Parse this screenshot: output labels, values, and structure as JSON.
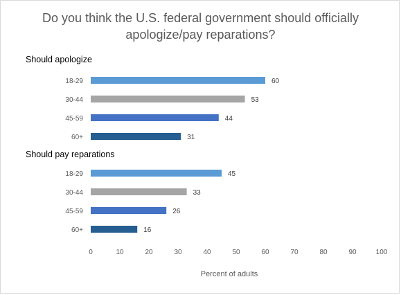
{
  "chart_data": {
    "type": "bar",
    "orientation": "horizontal",
    "title": "Do you think the U.S. federal government should officially apologize/pay reparations?",
    "title_lines": [
      "Do you think the U.S. federal government should officially",
      "apologize/pay reparations?"
    ],
    "xlabel": "Percent of adults",
    "xlim": [
      0,
      100
    ],
    "xticks": [
      "0",
      "10",
      "20",
      "30",
      "40",
      "50",
      "60",
      "70",
      "80",
      "90",
      "100"
    ],
    "grid": false,
    "legend": "none",
    "categories": [
      "18-29",
      "30-44",
      "45-59",
      "60+"
    ],
    "category_colors": [
      "#5b9bd5",
      "#a5a5a5",
      "#4472c4",
      "#255e91"
    ],
    "groups": [
      {
        "name": "Should apologize",
        "values": [
          60,
          53,
          44,
          31
        ]
      },
      {
        "name": "Should pay reparations",
        "values": [
          45,
          33,
          26,
          16
        ]
      }
    ]
  }
}
